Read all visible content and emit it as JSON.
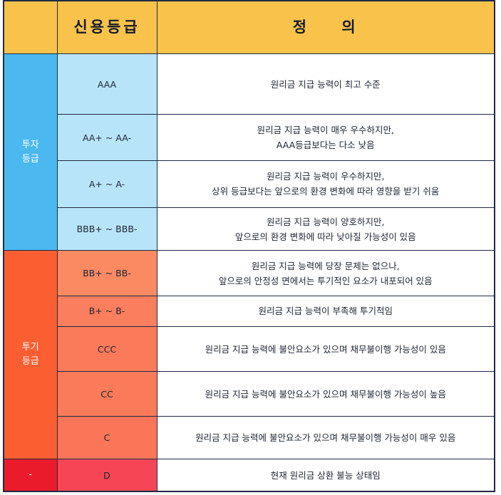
{
  "header": {
    "blank": "",
    "grade": "신용등급",
    "definition": "정    의"
  },
  "groups": {
    "investment": {
      "line1": "투자",
      "line2": "등급"
    },
    "speculative": {
      "line1": "투기",
      "line2": "등급"
    },
    "default": {
      "label": "-"
    }
  },
  "rows": [
    {
      "grade": "AAA",
      "def": [
        "원리금 지급 능력이 최고 수준"
      ]
    },
    {
      "grade": "AA+ ~ AA-",
      "def": [
        "원리금 지급 능력이 매우 우수하지만,",
        "AAA등급보다는 다소 낮음"
      ]
    },
    {
      "grade": "A+ ~ A-",
      "def": [
        "원리금 지급 능력이 우수하지만,",
        "상위 등급보다는 앞으로의 환경 변화에 따라 영향을 받기 쉬움"
      ]
    },
    {
      "grade": "BBB+ ~ BBB-",
      "def": [
        "원리금 지급 능력이 양호하지만,",
        "앞으로의 환경 변화에 따라 낮아질 가능성이 있음"
      ]
    },
    {
      "grade": "BB+ ~ BB-",
      "def": [
        "원리금 지급 능력에 당장 문제는 없으나,",
        "앞으로의 안정성 면에서는 투기적인 요소가 내포되어 있음"
      ]
    },
    {
      "grade": "B+ ~ B-",
      "def": [
        "원리금 지급 능력이 부족해 투기적임"
      ]
    },
    {
      "grade": "CCC",
      "def": [
        "원리금 지급 능력에 불안요소가 있으며 채무불이행 가능성이 있음"
      ]
    },
    {
      "grade": "CC",
      "def": [
        "원리금 지급 능력에 불안요소가 있으며 채무불이행 가능성이 높음"
      ]
    },
    {
      "grade": "C",
      "def": [
        "원리금 지급 능력에 불안요소가 있으며 채무불이행 가능성이 매우 있음"
      ]
    },
    {
      "grade": "D",
      "def": [
        "현재 원리금 상환 불능 상태임"
      ]
    }
  ],
  "colors": {
    "header": "#f9c34b",
    "investment_category": "#4bb8f0",
    "investment_grade": "#b8e4fa",
    "speculative_category": "#fb5e31",
    "speculative_grade": "#fb7a5a",
    "default_category": "#ea1c2b",
    "default_grade": "#f64655",
    "border": "#1f2a44"
  }
}
